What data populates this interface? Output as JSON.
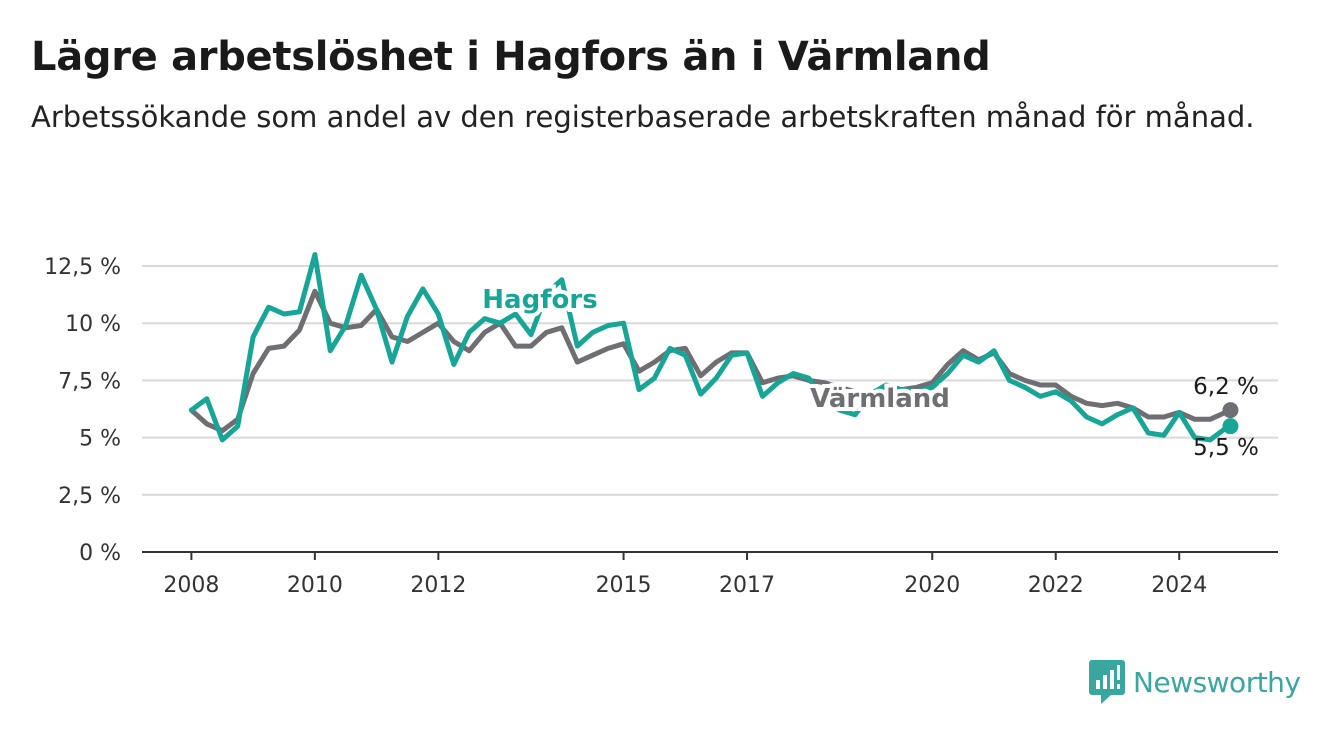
{
  "header": {
    "title": "Lägre arbetslöshet i Hagfors än i Värmland",
    "subtitle": "Arbetssökande som andel av den registerbaserade arbetskraften månad för månad."
  },
  "logo": {
    "text": "Newsworthy",
    "icon": "bar-chart-icon",
    "color": "#3aa6a0"
  },
  "chart_data": {
    "type": "line",
    "y_ticks": [
      "0 %",
      "2,5 %",
      "5 %",
      "7,5 %",
      "10 %",
      "12,5 %"
    ],
    "y_tick_values": [
      0,
      2.5,
      5,
      7.5,
      10,
      12.5
    ],
    "ylim": [
      0,
      12.5
    ],
    "x_ticks": [
      "2008",
      "2010",
      "2012",
      "2015",
      "2017",
      "2020",
      "2022",
      "2024"
    ],
    "x_tick_values": [
      2008,
      2010,
      2012,
      2015,
      2017,
      2020,
      2022,
      2024
    ],
    "xlim": [
      2007.2,
      2025.6
    ],
    "grid": true,
    "series": [
      {
        "name": "Värmland",
        "color": "#6e6e73",
        "end_label": "6,2 %",
        "x": [
          2008.0,
          2008.25,
          2008.5,
          2008.75,
          2009.0,
          2009.25,
          2009.5,
          2009.75,
          2010.0,
          2010.25,
          2010.5,
          2010.75,
          2011.0,
          2011.25,
          2011.5,
          2011.75,
          2012.0,
          2012.25,
          2012.5,
          2012.75,
          2013.0,
          2013.25,
          2013.5,
          2013.75,
          2014.0,
          2014.25,
          2014.5,
          2014.75,
          2015.0,
          2015.25,
          2015.5,
          2015.75,
          2016.0,
          2016.25,
          2016.5,
          2016.75,
          2017.0,
          2017.25,
          2017.5,
          2017.75,
          2018.0,
          2018.25,
          2018.5,
          2018.75,
          2019.0,
          2019.25,
          2019.5,
          2019.75,
          2020.0,
          2020.25,
          2020.5,
          2020.75,
          2021.0,
          2021.25,
          2021.5,
          2021.75,
          2022.0,
          2022.25,
          2022.5,
          2022.75,
          2023.0,
          2023.25,
          2023.5,
          2023.75,
          2024.0,
          2024.25,
          2024.5,
          2024.75,
          2024.83
        ],
        "y": [
          6.2,
          5.6,
          5.3,
          5.8,
          7.8,
          8.9,
          9.0,
          9.7,
          11.4,
          10.0,
          9.8,
          9.9,
          10.6,
          9.4,
          9.2,
          9.6,
          10.0,
          9.2,
          8.8,
          9.6,
          10.0,
          9.0,
          9.0,
          9.6,
          9.8,
          8.3,
          8.6,
          8.9,
          9.1,
          7.9,
          8.3,
          8.8,
          8.9,
          7.7,
          8.3,
          8.7,
          8.7,
          7.4,
          7.6,
          7.7,
          7.5,
          7.4,
          7.2,
          7.0,
          7.0,
          7.1,
          7.1,
          7.2,
          7.4,
          8.2,
          8.8,
          8.4,
          8.7,
          7.8,
          7.5,
          7.3,
          7.3,
          6.8,
          6.5,
          6.4,
          6.5,
          6.3,
          5.9,
          5.9,
          6.1,
          5.8,
          5.8,
          6.1,
          6.2
        ]
      },
      {
        "name": "Hagfors",
        "color": "#16a596",
        "end_label": "5,5 %",
        "x": [
          2008.0,
          2008.25,
          2008.5,
          2008.75,
          2009.0,
          2009.25,
          2009.5,
          2009.75,
          2010.0,
          2010.25,
          2010.5,
          2010.75,
          2011.0,
          2011.25,
          2011.5,
          2011.75,
          2012.0,
          2012.25,
          2012.5,
          2012.75,
          2013.0,
          2013.25,
          2013.5,
          2013.75,
          2014.0,
          2014.25,
          2014.5,
          2014.75,
          2015.0,
          2015.25,
          2015.5,
          2015.75,
          2016.0,
          2016.25,
          2016.5,
          2016.75,
          2017.0,
          2017.25,
          2017.5,
          2017.75,
          2018.0,
          2018.25,
          2018.5,
          2018.75,
          2019.0,
          2019.25,
          2019.5,
          2019.75,
          2020.0,
          2020.25,
          2020.5,
          2020.75,
          2021.0,
          2021.25,
          2021.5,
          2021.75,
          2022.0,
          2022.25,
          2022.5,
          2022.75,
          2023.0,
          2023.25,
          2023.5,
          2023.75,
          2024.0,
          2024.25,
          2024.5,
          2024.75,
          2024.83
        ],
        "y": [
          6.2,
          6.7,
          4.9,
          5.5,
          9.4,
          10.7,
          10.4,
          10.5,
          13.0,
          8.8,
          9.9,
          12.1,
          10.6,
          8.3,
          10.3,
          11.5,
          10.4,
          8.2,
          9.6,
          10.2,
          10.0,
          10.4,
          9.5,
          11.3,
          11.9,
          9.0,
          9.6,
          9.9,
          10.0,
          7.1,
          7.6,
          8.9,
          8.6,
          6.9,
          7.6,
          8.6,
          8.7,
          6.8,
          7.4,
          7.8,
          7.6,
          6.6,
          6.2,
          6.0,
          6.9,
          7.3,
          7.1,
          7.0,
          7.2,
          7.8,
          8.6,
          8.3,
          8.8,
          7.5,
          7.2,
          6.8,
          7.0,
          6.6,
          5.9,
          5.6,
          6.0,
          6.3,
          5.2,
          5.1,
          6.1,
          5.0,
          4.9,
          5.4,
          5.5
        ]
      }
    ]
  }
}
